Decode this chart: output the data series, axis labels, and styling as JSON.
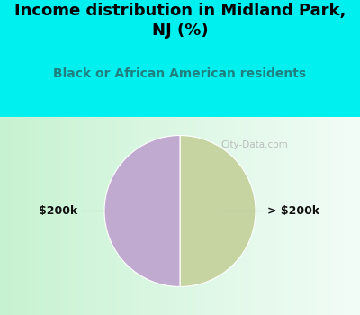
{
  "title": "Income distribution in Midland Park,\nNJ (%)",
  "subtitle": "Black or African American residents",
  "slices": [
    50.0,
    50.0
  ],
  "slice_colors": [
    "#c5d4a0",
    "#c0aad0"
  ],
  "background_cyan": "#00f0f0",
  "title_fontsize": 13,
  "title_color": "#000000",
  "subtitle_fontsize": 10,
  "subtitle_color": "#208080",
  "watermark": "City-Data.com",
  "label_left": "$200k",
  "label_right": "> $200k",
  "label_fontsize": 9,
  "label_color": "#111111",
  "line_color": "#b0b8c8",
  "startangle": 90
}
